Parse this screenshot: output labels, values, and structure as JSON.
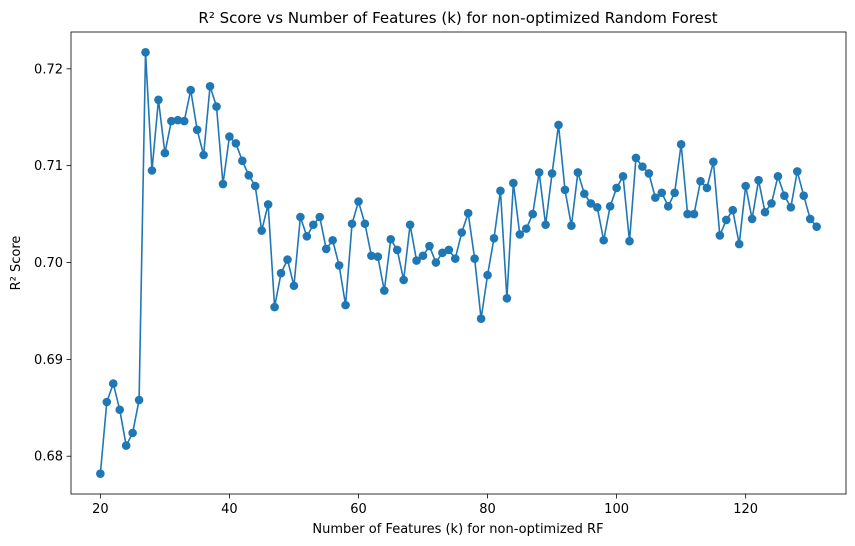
{
  "chart_data": {
    "type": "line",
    "title": "R² Score vs Number of Features (k) for non-optimized Random Forest",
    "xlabel": "Number of Features (k) for non-optimized RF",
    "ylabel": "R² Score",
    "xlim": [
      15.45,
      135.55
    ],
    "ylim": [
      0.6761,
      0.7238
    ],
    "xticks": [
      20,
      40,
      60,
      80,
      100,
      120
    ],
    "xtick_labels": [
      "20",
      "40",
      "60",
      "80",
      "100",
      "120"
    ],
    "yticks": [
      0.68,
      0.69,
      0.7,
      0.71,
      0.72
    ],
    "ytick_labels": [
      "0.68",
      "0.69",
      "0.70",
      "0.71",
      "0.72"
    ],
    "grid": false,
    "legend": "none",
    "color": "#1f77b4",
    "marker": "circle",
    "series": [
      {
        "x": [
          20,
          21,
          22,
          23,
          24,
          25,
          26,
          27,
          28,
          29,
          30,
          31,
          32,
          33,
          34,
          35,
          36,
          37,
          38,
          39,
          40,
          41,
          42,
          43,
          44,
          45,
          46,
          47,
          48,
          49,
          50,
          51,
          52,
          53,
          54,
          55,
          56,
          57,
          58,
          59,
          60,
          61,
          62,
          63,
          64,
          65,
          66,
          67,
          68,
          69,
          70,
          71,
          72,
          73,
          74,
          75,
          76,
          77,
          78,
          79,
          80,
          81,
          82,
          83,
          84,
          85,
          86,
          87,
          88,
          89,
          90,
          91,
          92,
          93,
          94,
          95,
          96,
          97,
          98,
          99,
          100,
          101,
          102,
          103,
          104,
          105,
          106,
          107,
          108,
          109,
          110,
          111,
          112,
          113,
          114,
          115,
          116,
          117,
          118,
          119,
          120,
          121,
          122,
          123,
          124,
          125,
          126,
          127,
          128,
          129,
          130,
          131
        ],
        "values": [
          0.6782,
          0.6856,
          0.6875,
          0.6848,
          0.6811,
          0.6824,
          0.6858,
          0.7217,
          0.7095,
          0.7168,
          0.7113,
          0.7146,
          0.7147,
          0.7146,
          0.7178,
          0.7137,
          0.7111,
          0.7182,
          0.7161,
          0.7081,
          0.713,
          0.7123,
          0.7105,
          0.709,
          0.7079,
          0.7033,
          0.706,
          0.6954,
          0.6989,
          0.7003,
          0.6976,
          0.7047,
          0.7027,
          0.7039,
          0.7047,
          0.7014,
          0.7023,
          0.6997,
          0.6956,
          0.704,
          0.7063,
          0.704,
          0.7007,
          0.7006,
          0.6971,
          0.7024,
          0.7013,
          0.6982,
          0.7039,
          0.7002,
          0.7007,
          0.7017,
          0.7,
          0.701,
          0.7013,
          0.7004,
          0.7031,
          0.7051,
          0.7004,
          0.6942,
          0.6987,
          0.7025,
          0.7074,
          0.6963,
          0.7082,
          0.7029,
          0.7035,
          0.705,
          0.7093,
          0.7039,
          0.7092,
          0.7142,
          0.7075,
          0.7038,
          0.7093,
          0.7071,
          0.7061,
          0.7057,
          0.7023,
          0.7058,
          0.7077,
          0.7089,
          0.7022,
          0.7108,
          0.7099,
          0.7092,
          0.7067,
          0.7072,
          0.7058,
          0.7072,
          0.7122,
          0.705,
          0.705,
          0.7084,
          0.7077,
          0.7104,
          0.7028,
          0.7044,
          0.7054,
          0.7019,
          0.7079,
          0.7045,
          0.7085,
          0.7052,
          0.7061,
          0.7089,
          0.7069,
          0.7057,
          0.7094,
          0.7069,
          0.7045,
          0.7037
        ]
      }
    ]
  }
}
